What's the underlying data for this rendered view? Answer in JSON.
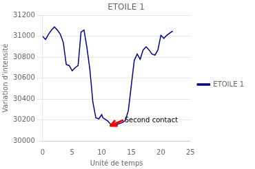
{
  "chart_data": {
    "type": "line",
    "title": "ETOILE 1",
    "xlabel": "Unité de temps",
    "ylabel": "Variation d'intensité",
    "x": [
      0.0,
      0.5,
      1.0,
      1.5,
      2.0,
      2.5,
      3.0,
      3.5,
      4.0,
      4.5,
      5.0,
      5.5,
      6.0,
      6.5,
      7.0,
      7.5,
      8.0,
      8.5,
      9.0,
      9.5,
      10.0,
      10.2,
      10.5,
      11.0,
      11.5,
      12.0,
      12.5,
      13.0,
      13.5,
      14.0,
      14.5,
      15.0,
      15.5,
      16.0,
      16.5,
      17.0,
      17.5,
      18.0,
      18.5,
      19.0,
      19.5,
      20.0,
      20.5,
      21.0,
      22.0
    ],
    "series": [
      {
        "name": "ETOILE 1",
        "color": "#00008B",
        "values": [
          31000,
          30970,
          31020,
          31060,
          31090,
          31060,
          31020,
          30940,
          30730,
          30720,
          30670,
          30700,
          30720,
          31040,
          31060,
          30890,
          30680,
          30370,
          30220,
          30210,
          30250,
          30220,
          30210,
          30190,
          30160,
          30150,
          30155,
          30165,
          30175,
          30195,
          30290,
          30530,
          30770,
          30830,
          30780,
          30870,
          30900,
          30870,
          30830,
          30820,
          30870,
          31010,
          30980,
          31010,
          31050
        ]
      }
    ],
    "xlim": [
      0,
      25
    ],
    "xticks": [
      0,
      5,
      10,
      15,
      20,
      25
    ],
    "ylim": [
      30000,
      31200
    ],
    "yticks": [
      30000,
      30200,
      30400,
      30600,
      30800,
      31000,
      31200
    ],
    "grid": "y",
    "legend": "right",
    "annotations": [
      {
        "text": "Second contact",
        "x": 13.5,
        "y": 30195,
        "arrow_x": 11.5,
        "arrow_y": 30145,
        "color": "red"
      }
    ]
  }
}
